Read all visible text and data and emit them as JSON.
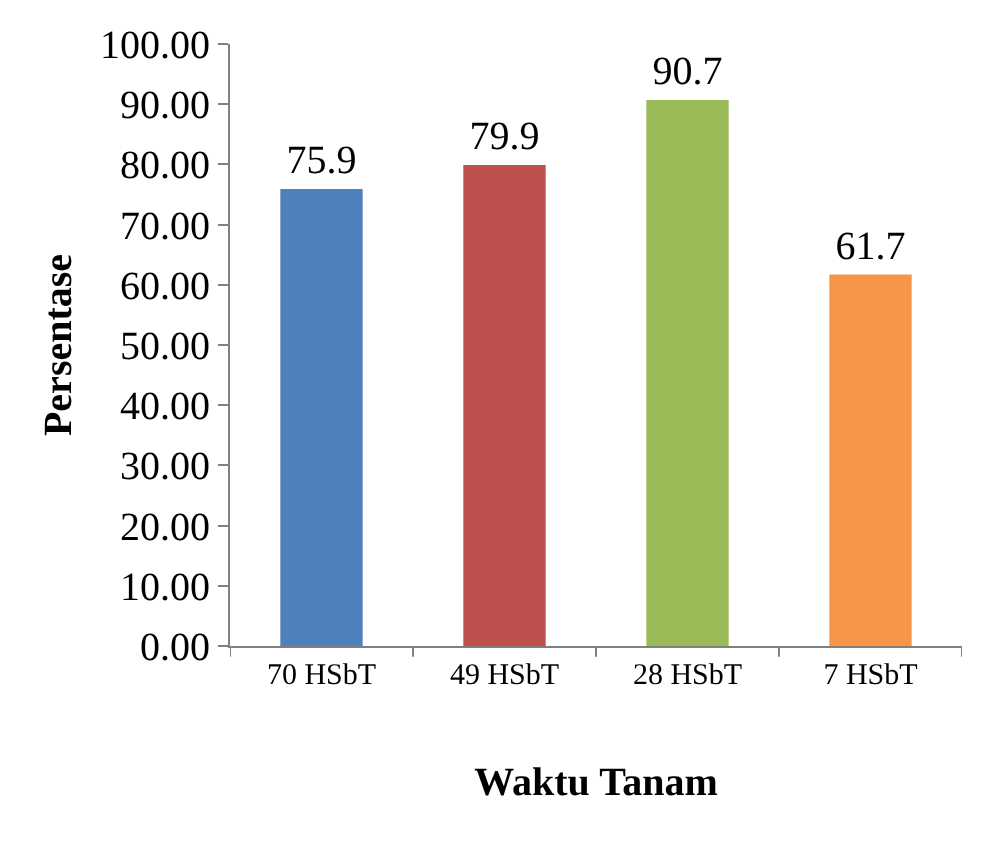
{
  "chart_data": {
    "type": "bar",
    "xlabel": "Waktu Tanam",
    "ylabel": "Persentase",
    "categories": [
      "70 HSbT",
      "49 HSbT",
      "28 HSbT",
      "7 HSbT"
    ],
    "values": [
      75.9,
      79.9,
      90.7,
      61.7
    ],
    "colors": [
      "#4f81bd",
      "#c0504d",
      "#9bbb59",
      "#f79646"
    ],
    "ylim": [
      0,
      100
    ],
    "yticks": [
      {
        "value": 0,
        "label": "0.00"
      },
      {
        "value": 10,
        "label": "10.00"
      },
      {
        "value": 20,
        "label": "20.00"
      },
      {
        "value": 30,
        "label": "30.00"
      },
      {
        "value": 40,
        "label": "40.00"
      },
      {
        "value": 50,
        "label": "50.00"
      },
      {
        "value": 60,
        "label": "60.00"
      },
      {
        "value": 70,
        "label": "70.00"
      },
      {
        "value": 80,
        "label": "80.00"
      },
      {
        "value": 90,
        "label": "90.00"
      },
      {
        "value": 100,
        "label": "100.00"
      }
    ],
    "data_labels": true
  }
}
